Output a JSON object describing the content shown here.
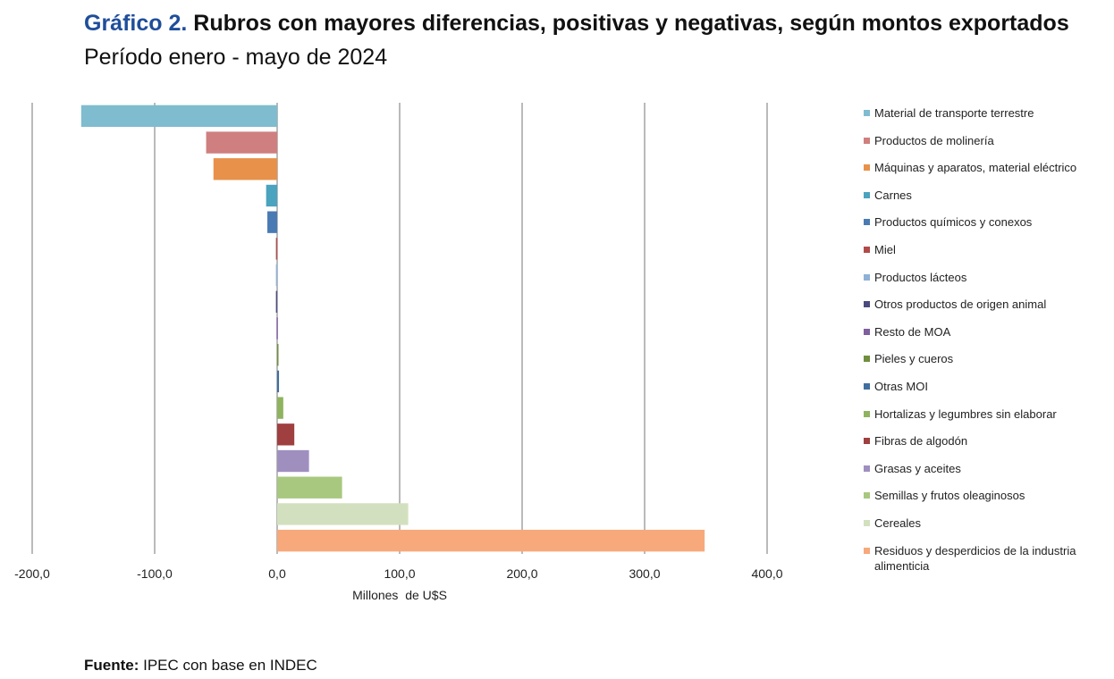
{
  "header": {
    "title_prefix": "Gráfico 2.",
    "title_main": "Rubros con mayores diferencias, positivas y negativas, según montos exportados",
    "subtitle": "Período enero - mayo de 2024"
  },
  "footer": {
    "source_label": "Fuente:",
    "source_text": "IPEC con base en INDEC"
  },
  "chart_data": {
    "type": "bar",
    "orientation": "horizontal",
    "title": "Rubros con mayores diferencias, positivas y negativas, según montos exportados",
    "subtitle": "Período enero - mayo de 2024",
    "xlabel": "Millones  de U$S",
    "ylabel": "",
    "xlim": [
      -200,
      400
    ],
    "xticks": [
      -200,
      -100,
      0,
      100,
      200,
      300,
      400
    ],
    "xtick_labels": [
      "-200,0",
      "-100,0",
      "0,0",
      "100,0",
      "200,0",
      "300,0",
      "400,0"
    ],
    "grid": "vertical",
    "legend_position": "right",
    "categories": [
      "Material de transporte terrestre",
      "Productos de molinería",
      "Máquinas y aparatos, material eléctrico",
      "Carnes",
      "Productos químicos y conexos",
      "Miel",
      "Productos lácteos",
      "Otros productos de origen animal",
      "Resto de MOA",
      "Pieles y cueros",
      "Otras MOI",
      "Hortalizas y legumbres sin elaborar",
      "Fibras de algodón",
      "Grasas y aceites",
      "Semillas y frutos oleaginosos",
      "Cereales",
      "Residuos y desperdicios de la industria alimenticia"
    ],
    "values": [
      -160,
      -58,
      -52,
      -9,
      -8,
      -1,
      -1,
      -1,
      -0.5,
      0.5,
      1.5,
      5,
      14,
      26,
      53,
      107,
      349
    ],
    "colors": [
      "#7fbccf",
      "#cf7f7f",
      "#e8914a",
      "#4aa3bf",
      "#4a7ab3",
      "#b34a4a",
      "#8fb1d6",
      "#4a4a7f",
      "#7f5f9f",
      "#6f8f3f",
      "#3f6f9f",
      "#8fb35f",
      "#9f3f3f",
      "#9f8fbf",
      "#a8c87f",
      "#d3e0bf",
      "#f7a97c"
    ]
  }
}
